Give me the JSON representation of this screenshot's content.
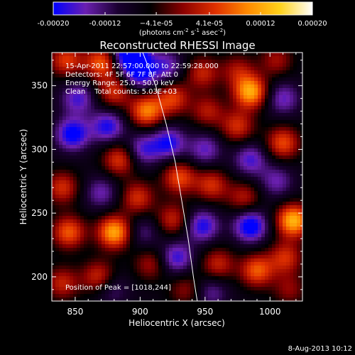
{
  "chart_data": {
    "type": "heatmap",
    "title": "Reconstructed RHESSI Image",
    "xlabel": "Heliocentric X (arcsec)",
    "ylabel": "Heliocentric Y (arcsec)",
    "xlim": [
      832,
      1025
    ],
    "ylim": [
      181,
      376
    ],
    "x_ticks": [
      850,
      900,
      950,
      1000
    ],
    "y_ticks": [
      200,
      250,
      300,
      350
    ],
    "grid": false,
    "colorbar": {
      "label_parts": [
        "(photons cm",
        "-2",
        " s",
        "-1",
        " asec",
        "-2",
        ")"
      ],
      "range": [
        -0.0002,
        0.0002
      ],
      "tick_values": [
        -0.0002,
        -0.00012,
        -4.1e-05,
        4.1e-05,
        0.00012,
        0.0002
      ],
      "tick_labels": [
        "-0.00020",
        "-0.00012",
        "−4.1e-05",
        "4.1e-05",
        "0.00012",
        "0.00020"
      ],
      "colormap": [
        "#0000ff",
        "#6a1fb0",
        "#1a0030",
        "#000000",
        "#8a0000",
        "#e03000",
        "#ff8a00",
        "#ffd21a",
        "#ffffff"
      ]
    },
    "annotations": [
      "15-Apr-2011 22:57:00.000 to 22:59:28.000",
      "Detectors: 4F 5F 6F 7F 8F, Att 0",
      "Energy Range: 25.0 - 50.0 keV",
      "Clean    Total counts: 5.03E+03"
    ],
    "peak_label": "Position of Peak = [1018,244]",
    "peak_position": [
      1018,
      244
    ],
    "limb_curve": [
      [
        902,
        376
      ],
      [
        912,
        350
      ],
      [
        920,
        320
      ],
      [
        927,
        290
      ],
      [
        932,
        260
      ],
      [
        937,
        230
      ],
      [
        941,
        200
      ],
      [
        944,
        181
      ]
    ],
    "blobs": [
      {
        "x": 843,
        "y": 370,
        "v": 0.6
      },
      {
        "x": 852,
        "y": 340,
        "v": -0.5
      },
      {
        "x": 848,
        "y": 312,
        "v": -0.7
      },
      {
        "x": 840,
        "y": 270,
        "v": 0.55
      },
      {
        "x": 845,
        "y": 235,
        "v": 0.7
      },
      {
        "x": 840,
        "y": 195,
        "v": 0.5
      },
      {
        "x": 870,
        "y": 368,
        "v": 0.7
      },
      {
        "x": 880,
        "y": 345,
        "v": 0.55
      },
      {
        "x": 875,
        "y": 318,
        "v": -0.6
      },
      {
        "x": 884,
        "y": 292,
        "v": 0.6
      },
      {
        "x": 870,
        "y": 266,
        "v": -0.4
      },
      {
        "x": 880,
        "y": 235,
        "v": 0.95
      },
      {
        "x": 868,
        "y": 200,
        "v": 0.55
      },
      {
        "x": 878,
        "y": 190,
        "v": -0.3
      },
      {
        "x": 900,
        "y": 360,
        "v": -0.6
      },
      {
        "x": 893,
        "y": 375,
        "v": -1.0
      },
      {
        "x": 905,
        "y": 330,
        "v": 0.8
      },
      {
        "x": 902,
        "y": 300,
        "v": -0.5
      },
      {
        "x": 898,
        "y": 262,
        "v": 0.55
      },
      {
        "x": 903,
        "y": 235,
        "v": -0.3
      },
      {
        "x": 908,
        "y": 210,
        "v": 0.4
      },
      {
        "x": 920,
        "y": 365,
        "v": -0.45
      },
      {
        "x": 925,
        "y": 340,
        "v": 0.6
      },
      {
        "x": 922,
        "y": 305,
        "v": -0.6
      },
      {
        "x": 930,
        "y": 278,
        "v": 0.65
      },
      {
        "x": 925,
        "y": 245,
        "v": 0.5
      },
      {
        "x": 928,
        "y": 215,
        "v": -0.55
      },
      {
        "x": 935,
        "y": 190,
        "v": 0.35
      },
      {
        "x": 948,
        "y": 360,
        "v": 0.5
      },
      {
        "x": 952,
        "y": 330,
        "v": 0.45
      },
      {
        "x": 950,
        "y": 300,
        "v": -0.45
      },
      {
        "x": 955,
        "y": 272,
        "v": 0.55
      },
      {
        "x": 948,
        "y": 240,
        "v": -0.6
      },
      {
        "x": 960,
        "y": 210,
        "v": 0.5
      },
      {
        "x": 955,
        "y": 188,
        "v": -0.35
      },
      {
        "x": 975,
        "y": 362,
        "v": 0.4
      },
      {
        "x": 985,
        "y": 345,
        "v": 0.95
      },
      {
        "x": 975,
        "y": 318,
        "v": 0.55
      },
      {
        "x": 985,
        "y": 292,
        "v": -0.5
      },
      {
        "x": 980,
        "y": 262,
        "v": 0.45
      },
      {
        "x": 985,
        "y": 240,
        "v": -0.75
      },
      {
        "x": 990,
        "y": 205,
        "v": 0.7
      },
      {
        "x": 1005,
        "y": 370,
        "v": 0.4
      },
      {
        "x": 1010,
        "y": 340,
        "v": -0.45
      },
      {
        "x": 1010,
        "y": 305,
        "v": 0.65
      },
      {
        "x": 1005,
        "y": 275,
        "v": -0.4
      },
      {
        "x": 1018,
        "y": 244,
        "v": 1.0
      },
      {
        "x": 1012,
        "y": 215,
        "v": 0.55
      },
      {
        "x": 1015,
        "y": 190,
        "v": 0.35
      }
    ]
  },
  "footer": {
    "date": "8-Aug-2013 10:12"
  }
}
